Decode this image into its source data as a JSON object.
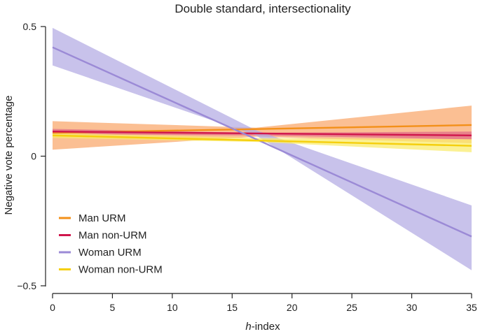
{
  "chart_data": {
    "type": "line",
    "title": "Double standard, intersectionality",
    "xlabel_italic": "h",
    "xlabel_rest": "-index",
    "ylabel": "Negative vote percentage",
    "xlim": [
      0,
      35
    ],
    "ylim": [
      -0.5,
      0.5
    ],
    "xticks": [
      0,
      5,
      10,
      15,
      20,
      25,
      30,
      35
    ],
    "yticks": [
      {
        "value": 0.5,
        "label": "0.5"
      },
      {
        "value": 0,
        "label": "0"
      },
      {
        "value": -0.5,
        "label": "−0.5"
      }
    ],
    "legend_position": "bottom-left",
    "grid": false,
    "series": [
      {
        "name": "Man URM",
        "color": "#f39019",
        "band_color": "#f9a66a",
        "x": [
          0,
          35
        ],
        "y": [
          0.09,
          0.12
        ],
        "band": {
          "x": [
            0,
            17,
            35
          ],
          "lower": [
            0.025,
            0.075,
            0.05
          ],
          "upper": [
            0.135,
            0.11,
            0.195
          ]
        }
      },
      {
        "name": "Man non-URM",
        "color": "#d0164c",
        "band_color": "#e06b86",
        "x": [
          0,
          35
        ],
        "y": [
          0.095,
          0.08
        ],
        "band": {
          "x": [
            0,
            17,
            35
          ],
          "lower": [
            0.085,
            0.08,
            0.065
          ],
          "upper": [
            0.105,
            0.09,
            0.095
          ]
        }
      },
      {
        "name": "Woman URM",
        "color": "#9b8ad6",
        "band_color": "#b3aae3",
        "x": [
          0,
          35
        ],
        "y": [
          0.42,
          -0.31
        ],
        "band": {
          "x": [
            0,
            17,
            35
          ],
          "lower": [
            0.35,
            0.08,
            -0.44
          ],
          "upper": [
            0.495,
            0.1,
            -0.19
          ]
        }
      },
      {
        "name": "Woman non-URM",
        "color": "#f5cf0d",
        "band_color": "#faeb6b",
        "x": [
          0,
          35
        ],
        "y": [
          0.08,
          0.04
        ],
        "band": {
          "x": [
            0,
            17,
            35
          ],
          "lower": [
            0.07,
            0.055,
            0.015
          ],
          "upper": [
            0.09,
            0.07,
            0.065
          ]
        }
      }
    ]
  }
}
